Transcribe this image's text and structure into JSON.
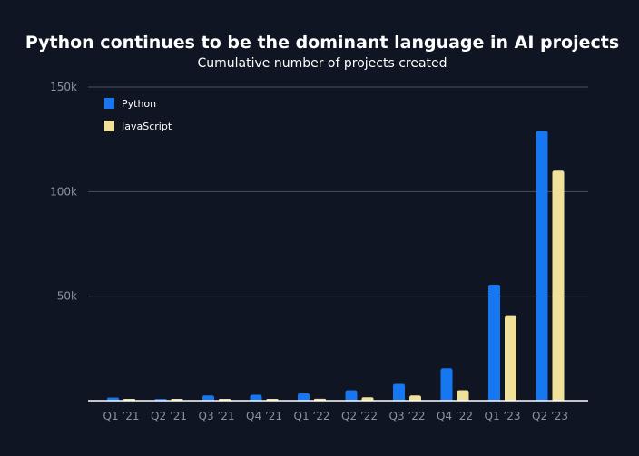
{
  "colors": {
    "background": "#0f1523",
    "python": "#1677f0",
    "javascript": "#f1e09a",
    "text": "#ffffff",
    "tick_label": "#8b92a0",
    "gridline": "#4a5060",
    "axis": "#ffffff"
  },
  "chart_data": {
    "type": "bar",
    "title": "Python continues to be the dominant language in AI projects",
    "subtitle": "Cumulative number of projects created",
    "categories": [
      "Q1 ’21",
      "Q2 ’21",
      "Q3 ’21",
      "Q4 ’21",
      "Q1 ’22",
      "Q2 ’22",
      "Q3 ’22",
      "Q4 ’22",
      "Q1 ’23",
      "Q2 ’23"
    ],
    "series": [
      {
        "name": "Python",
        "color": "#1677f0",
        "values": [
          1500,
          800,
          2500,
          2800,
          3500,
          5000,
          8000,
          15500,
          55500,
          129000
        ]
      },
      {
        "name": "JavaScript",
        "color": "#f1e09a",
        "values": [
          300,
          300,
          700,
          800,
          900,
          1600,
          2500,
          5000,
          40500,
          110000
        ]
      }
    ],
    "ylim": [
      0,
      150000
    ],
    "yticks": [
      {
        "value": 50000,
        "label": "50k"
      },
      {
        "value": 100000,
        "label": "100k"
      },
      {
        "value": 150000,
        "label": "150k"
      }
    ],
    "xlabel": "",
    "ylabel": "",
    "grid": true,
    "legend_position": "top-left"
  }
}
